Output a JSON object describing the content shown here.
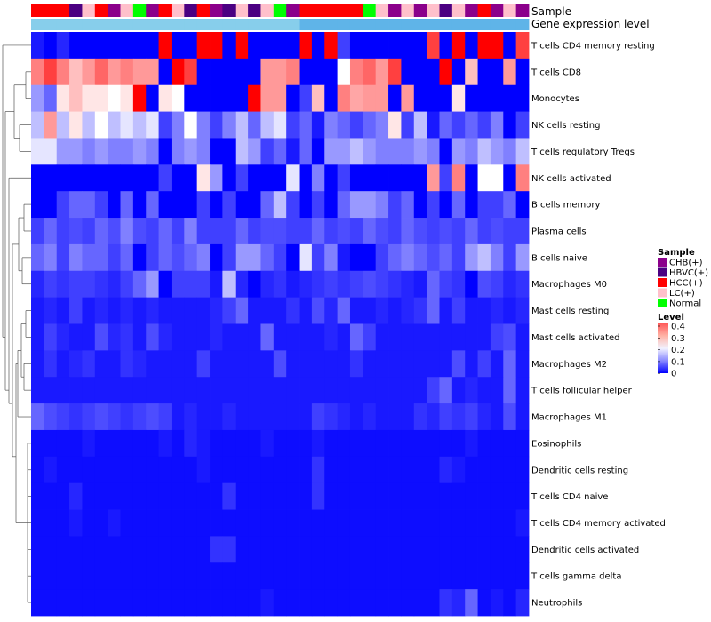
{
  "chart_data": {
    "type": "heatmap",
    "column_annotations": [
      {
        "name": "Sample",
        "values": [
          "HCC(+)",
          "HCC(+)",
          "HCC(+)",
          "HBVC(+)",
          "LC(+)",
          "HCC(+)",
          "CHB(+)",
          "LC(+)",
          "Normal",
          "CHB(+)",
          "HCC(+)",
          "LC(+)",
          "HBVC(+)",
          "HCC(+)",
          "CHB(+)",
          "HBVC(+)",
          "LC(+)",
          "HBVC(+)",
          "LC(+)",
          "Normal",
          "CHB(+)",
          "HCC(+)",
          "HCC(+)",
          "HCC(+)",
          "HCC(+)",
          "HCC(+)",
          "Normal",
          "LC(+)",
          "CHB(+)",
          "LC(+)",
          "CHB(+)",
          "LC(+)",
          "HBVC(+)",
          "LC(+)",
          "CHB(+)",
          "HCC(+)",
          "CHB(+)",
          "LC(+)",
          "CHB(+)"
        ]
      },
      {
        "name": "Gene expression level",
        "values": [
          "Low",
          "Low",
          "Low",
          "Low",
          "Low",
          "Low",
          "Low",
          "Low",
          "Low",
          "Low",
          "Low",
          "Low",
          "Low",
          "Low",
          "Low",
          "Low",
          "Low",
          "Low",
          "Low",
          "Low",
          "Low",
          "High",
          "High",
          "High",
          "High",
          "High",
          "High",
          "High",
          "High",
          "High",
          "High",
          "High",
          "High",
          "High",
          "High",
          "High",
          "High",
          "High",
          "High"
        ]
      }
    ],
    "rows": [
      "T cells CD4 memory resting",
      "T cells CD8",
      "Monocytes",
      "NK cells resting",
      "T cells regulatory  Tregs",
      "NK cells activated",
      "B cells memory",
      "Plasma cells",
      "B cells naive",
      "Macrophages M0",
      "Mast cells resting",
      "Mast cells activated",
      "Macrophages M2",
      "T cells follicular helper",
      "Macrophages M1",
      "Eosinophils",
      "Dendritic cells resting",
      "T cells CD4 naive",
      "T cells CD4 memory activated",
      "Dendritic cells activated",
      "T cells gamma delta",
      "Neutrophils"
    ],
    "values": [
      [
        0.02,
        0.0,
        0.03,
        0.0,
        0.0,
        0.0,
        0.0,
        0.0,
        0.0,
        0.0,
        0.4,
        0.0,
        0.0,
        0.4,
        0.4,
        0.0,
        0.4,
        0.0,
        0.0,
        0.0,
        0.0,
        0.4,
        0.0,
        0.4,
        0.05,
        0.0,
        0.0,
        0.0,
        0.0,
        0.0,
        0.0,
        0.35,
        0.0,
        0.4,
        0.0,
        0.4,
        0.4,
        0.0,
        0.35
      ],
      [
        0.3,
        0.35,
        0.3,
        0.25,
        0.28,
        0.32,
        0.28,
        0.3,
        0.28,
        0.28,
        0.0,
        0.4,
        0.35,
        0.0,
        0.0,
        0.0,
        0.0,
        0.0,
        0.28,
        0.28,
        0.3,
        0.0,
        0.0,
        0.0,
        0.2,
        0.3,
        0.32,
        0.28,
        0.35,
        0.0,
        0.0,
        0.0,
        0.4,
        0.0,
        0.25,
        0.0,
        0.0,
        0.28,
        0.0
      ],
      [
        0.12,
        0.08,
        0.22,
        0.25,
        0.22,
        0.22,
        0.2,
        0.22,
        0.4,
        0.0,
        0.22,
        0.2,
        0.0,
        0.0,
        0.0,
        0.0,
        0.0,
        0.4,
        0.28,
        0.28,
        0.0,
        0.05,
        0.25,
        0.0,
        0.3,
        0.27,
        0.28,
        0.28,
        0.0,
        0.28,
        0.0,
        0.0,
        0.0,
        0.22,
        0.0,
        0.0,
        0.0,
        0.0,
        0.0
      ],
      [
        0.15,
        0.28,
        0.15,
        0.22,
        0.15,
        0.2,
        0.15,
        0.18,
        0.15,
        0.18,
        0.05,
        0.1,
        0.2,
        0.1,
        0.05,
        0.1,
        0.15,
        0.08,
        0.15,
        0.18,
        0.05,
        0.08,
        0.02,
        0.1,
        0.08,
        0.05,
        0.08,
        0.1,
        0.22,
        0.05,
        0.15,
        0.02,
        0.08,
        0.05,
        0.08,
        0.05,
        0.1,
        0.0,
        0.05
      ],
      [
        0.18,
        0.18,
        0.12,
        0.12,
        0.1,
        0.12,
        0.1,
        0.1,
        0.12,
        0.1,
        0.0,
        0.1,
        0.12,
        0.1,
        0.0,
        0.0,
        0.15,
        0.12,
        0.05,
        0.08,
        0.02,
        0.08,
        0.0,
        0.12,
        0.12,
        0.15,
        0.12,
        0.1,
        0.1,
        0.1,
        0.12,
        0.1,
        0.0,
        0.12,
        0.1,
        0.15,
        0.12,
        0.1,
        0.15
      ],
      [
        0.0,
        0.0,
        0.0,
        0.0,
        0.0,
        0.0,
        0.0,
        0.0,
        0.0,
        0.0,
        0.05,
        0.0,
        0.0,
        0.22,
        0.12,
        0.0,
        0.05,
        0.0,
        0.0,
        0.0,
        0.18,
        0.0,
        0.1,
        0.0,
        0.05,
        0.0,
        0.0,
        0.0,
        0.0,
        0.0,
        0.0,
        0.28,
        0.05,
        0.3,
        0.0,
        0.2,
        0.2,
        0.0,
        0.3
      ],
      [
        0.0,
        0.0,
        0.05,
        0.08,
        0.08,
        0.05,
        0.0,
        0.08,
        0.0,
        0.08,
        0.0,
        0.0,
        0.0,
        0.05,
        0.0,
        0.05,
        0.0,
        0.0,
        0.08,
        0.15,
        0.05,
        0.0,
        0.05,
        0.0,
        0.08,
        0.12,
        0.12,
        0.1,
        0.05,
        0.08,
        0.0,
        0.05,
        0.0,
        0.08,
        0.0,
        0.05,
        0.05,
        0.08,
        0.0
      ],
      [
        0.05,
        0.08,
        0.05,
        0.06,
        0.05,
        0.08,
        0.06,
        0.1,
        0.06,
        0.05,
        0.08,
        0.05,
        0.1,
        0.05,
        0.05,
        0.05,
        0.08,
        0.05,
        0.06,
        0.06,
        0.05,
        0.05,
        0.08,
        0.05,
        0.06,
        0.05,
        0.08,
        0.06,
        0.05,
        0.08,
        0.06,
        0.05,
        0.06,
        0.05,
        0.08,
        0.05,
        0.06,
        0.05,
        0.05
      ],
      [
        0.08,
        0.1,
        0.05,
        0.1,
        0.08,
        0.08,
        0.05,
        0.08,
        0.0,
        0.05,
        0.08,
        0.06,
        0.08,
        0.1,
        0.0,
        0.05,
        0.12,
        0.12,
        0.08,
        0.05,
        0.0,
        0.18,
        0.05,
        0.1,
        0.02,
        0.0,
        0.0,
        0.05,
        0.08,
        0.1,
        0.08,
        0.06,
        0.08,
        0.05,
        0.12,
        0.15,
        0.1,
        0.05,
        0.12
      ],
      [
        0.03,
        0.05,
        0.04,
        0.05,
        0.05,
        0.04,
        0.03,
        0.05,
        0.08,
        0.12,
        0.0,
        0.05,
        0.05,
        0.05,
        0.02,
        0.15,
        0.03,
        0.0,
        0.03,
        0.04,
        0.02,
        0.03,
        0.04,
        0.05,
        0.04,
        0.05,
        0.06,
        0.05,
        0.04,
        0.03,
        0.02,
        0.08,
        0.05,
        0.04,
        0.0,
        0.06,
        0.05,
        0.03,
        0.04
      ],
      [
        0.02,
        0.03,
        0.02,
        0.05,
        0.02,
        0.03,
        0.02,
        0.03,
        0.02,
        0.03,
        0.02,
        0.02,
        0.02,
        0.02,
        0.03,
        0.05,
        0.08,
        0.02,
        0.02,
        0.02,
        0.04,
        0.02,
        0.06,
        0.03,
        0.08,
        0.02,
        0.02,
        0.03,
        0.02,
        0.03,
        0.04,
        0.08,
        0.02,
        0.05,
        0.02,
        0.02,
        0.03,
        0.02,
        0.03
      ],
      [
        0.02,
        0.05,
        0.03,
        0.02,
        0.02,
        0.06,
        0.03,
        0.04,
        0.02,
        0.06,
        0.03,
        0.02,
        0.02,
        0.02,
        0.03,
        0.02,
        0.02,
        0.02,
        0.08,
        0.02,
        0.02,
        0.02,
        0.02,
        0.03,
        0.02,
        0.08,
        0.05,
        0.02,
        0.02,
        0.02,
        0.02,
        0.02,
        0.02,
        0.02,
        0.02,
        0.02,
        0.05,
        0.06,
        0.02
      ],
      [
        0.02,
        0.04,
        0.02,
        0.03,
        0.04,
        0.02,
        0.02,
        0.04,
        0.03,
        0.02,
        0.02,
        0.02,
        0.02,
        0.05,
        0.02,
        0.02,
        0.02,
        0.02,
        0.02,
        0.06,
        0.02,
        0.02,
        0.02,
        0.02,
        0.02,
        0.04,
        0.02,
        0.02,
        0.02,
        0.02,
        0.02,
        0.02,
        0.02,
        0.06,
        0.02,
        0.05,
        0.02,
        0.08,
        0.02
      ],
      [
        0.02,
        0.02,
        0.02,
        0.02,
        0.02,
        0.02,
        0.02,
        0.02,
        0.02,
        0.02,
        0.02,
        0.02,
        0.02,
        0.02,
        0.02,
        0.02,
        0.02,
        0.02,
        0.02,
        0.02,
        0.02,
        0.02,
        0.02,
        0.02,
        0.02,
        0.02,
        0.02,
        0.02,
        0.02,
        0.02,
        0.02,
        0.05,
        0.08,
        0.02,
        0.03,
        0.02,
        0.02,
        0.08,
        0.02
      ],
      [
        0.08,
        0.06,
        0.05,
        0.04,
        0.05,
        0.06,
        0.05,
        0.04,
        0.05,
        0.06,
        0.05,
        0.02,
        0.03,
        0.02,
        0.02,
        0.03,
        0.02,
        0.02,
        0.02,
        0.02,
        0.02,
        0.02,
        0.05,
        0.04,
        0.03,
        0.02,
        0.03,
        0.02,
        0.02,
        0.02,
        0.04,
        0.03,
        0.05,
        0.04,
        0.05,
        0.03,
        0.02,
        0.06,
        0.02
      ],
      [
        0.01,
        0.01,
        0.01,
        0.01,
        0.02,
        0.01,
        0.01,
        0.01,
        0.01,
        0.01,
        0.02,
        0.01,
        0.03,
        0.02,
        0.01,
        0.01,
        0.01,
        0.01,
        0.02,
        0.01,
        0.01,
        0.01,
        0.02,
        0.01,
        0.01,
        0.01,
        0.01,
        0.01,
        0.01,
        0.01,
        0.01,
        0.01,
        0.01,
        0.01,
        0.02,
        0.01,
        0.01,
        0.01,
        0.01
      ],
      [
        0.01,
        0.02,
        0.01,
        0.01,
        0.01,
        0.01,
        0.01,
        0.01,
        0.01,
        0.01,
        0.01,
        0.01,
        0.01,
        0.02,
        0.01,
        0.01,
        0.01,
        0.01,
        0.01,
        0.01,
        0.01,
        0.01,
        0.04,
        0.01,
        0.01,
        0.01,
        0.01,
        0.01,
        0.01,
        0.01,
        0.01,
        0.01,
        0.03,
        0.02,
        0.01,
        0.01,
        0.01,
        0.01,
        0.01
      ],
      [
        0.01,
        0.01,
        0.01,
        0.03,
        0.01,
        0.01,
        0.01,
        0.01,
        0.01,
        0.01,
        0.01,
        0.01,
        0.01,
        0.01,
        0.01,
        0.04,
        0.01,
        0.01,
        0.01,
        0.01,
        0.01,
        0.01,
        0.04,
        0.01,
        0.01,
        0.01,
        0.01,
        0.01,
        0.01,
        0.01,
        0.01,
        0.01,
        0.01,
        0.01,
        0.01,
        0.01,
        0.01,
        0.01,
        0.01
      ],
      [
        0.01,
        0.01,
        0.01,
        0.02,
        0.01,
        0.01,
        0.02,
        0.01,
        0.01,
        0.01,
        0.01,
        0.01,
        0.01,
        0.01,
        0.01,
        0.01,
        0.01,
        0.01,
        0.01,
        0.01,
        0.01,
        0.01,
        0.01,
        0.01,
        0.01,
        0.01,
        0.01,
        0.01,
        0.01,
        0.01,
        0.01,
        0.01,
        0.01,
        0.01,
        0.01,
        0.01,
        0.01,
        0.01,
        0.02
      ],
      [
        0.01,
        0.01,
        0.01,
        0.01,
        0.01,
        0.01,
        0.01,
        0.01,
        0.01,
        0.01,
        0.01,
        0.01,
        0.01,
        0.01,
        0.04,
        0.04,
        0.01,
        0.01,
        0.01,
        0.01,
        0.01,
        0.01,
        0.01,
        0.01,
        0.01,
        0.01,
        0.01,
        0.01,
        0.01,
        0.01,
        0.01,
        0.01,
        0.01,
        0.01,
        0.01,
        0.01,
        0.01,
        0.01,
        0.01
      ],
      [
        0.01,
        0.01,
        0.01,
        0.01,
        0.01,
        0.01,
        0.01,
        0.01,
        0.01,
        0.01,
        0.01,
        0.01,
        0.01,
        0.01,
        0.01,
        0.01,
        0.01,
        0.01,
        0.01,
        0.01,
        0.01,
        0.01,
        0.01,
        0.01,
        0.01,
        0.01,
        0.01,
        0.01,
        0.01,
        0.01,
        0.01,
        0.01,
        0.01,
        0.01,
        0.01,
        0.01,
        0.01,
        0.01,
        0.01
      ],
      [
        0.01,
        0.01,
        0.01,
        0.01,
        0.01,
        0.01,
        0.01,
        0.01,
        0.01,
        0.01,
        0.01,
        0.01,
        0.01,
        0.01,
        0.01,
        0.01,
        0.01,
        0.01,
        0.02,
        0.01,
        0.01,
        0.01,
        0.01,
        0.01,
        0.01,
        0.01,
        0.01,
        0.01,
        0.01,
        0.01,
        0.01,
        0.01,
        0.04,
        0.03,
        0.08,
        0.01,
        0.02,
        0.01,
        0.03
      ]
    ],
    "color_scale": {
      "min": 0,
      "max": 0.4,
      "colors": [
        "#0000ff",
        "#ffffff",
        "#ff0000"
      ]
    },
    "legends": {
      "sample": {
        "title": "Sample",
        "items": [
          {
            "label": "CHB(+)",
            "color": "#8b008b"
          },
          {
            "label": "HBVC(+)",
            "color": "#4b0082"
          },
          {
            "label": "HCC(+)",
            "color": "#ff0000"
          },
          {
            "label": "LC(+)",
            "color": "#ffc0cb"
          },
          {
            "label": "Normal",
            "color": "#00ff00"
          }
        ]
      },
      "level": {
        "title": "Level",
        "ticks": [
          "0.4",
          "0.3",
          "0.2",
          "0.1",
          "0"
        ]
      }
    },
    "expression_colors": {
      "Low": "#87ceeb",
      "High": "#5fb4e8"
    }
  }
}
